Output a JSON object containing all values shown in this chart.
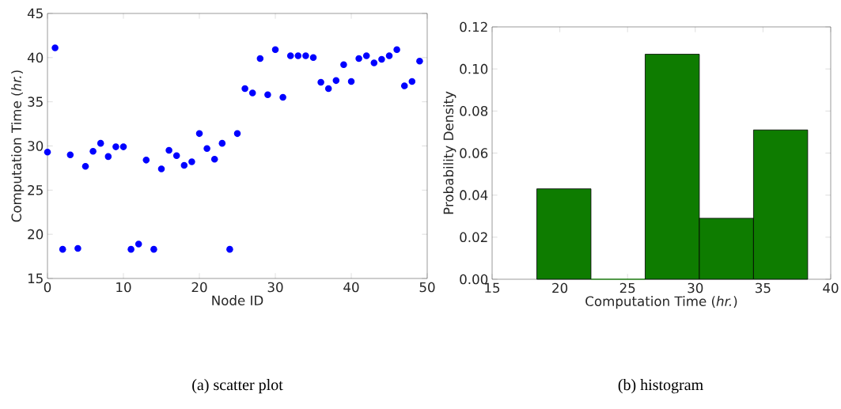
{
  "chart_data": [
    {
      "type": "scatter",
      "xlabel": "Node ID",
      "ylabel": "Computation Time (*hr.*)",
      "color": "#0000ff",
      "marker": "circle",
      "xlim": [
        0,
        50
      ],
      "ylim": [
        15,
        45
      ],
      "xticks": [
        0,
        10,
        20,
        30,
        40,
        50
      ],
      "yticks": [
        15,
        20,
        25,
        30,
        35,
        40,
        45
      ],
      "x": [
        0,
        1,
        2,
        3,
        4,
        5,
        6,
        7,
        8,
        9,
        10,
        11,
        12,
        13,
        14,
        15,
        16,
        17,
        18,
        19,
        20,
        21,
        22,
        23,
        24,
        25,
        26,
        27,
        28,
        29,
        30,
        31,
        32,
        33,
        34,
        35,
        36,
        37,
        38,
        39,
        40,
        41,
        42,
        43,
        44,
        45,
        46,
        47,
        48,
        49
      ],
      "values": [
        29.3,
        41.1,
        18.3,
        29.0,
        18.4,
        27.7,
        29.4,
        30.3,
        28.8,
        29.9,
        29.9,
        18.3,
        18.9,
        28.4,
        18.3,
        27.4,
        29.5,
        28.9,
        27.8,
        28.2,
        31.4,
        29.7,
        28.5,
        30.3,
        18.3,
        31.4,
        36.5,
        36.0,
        39.9,
        35.8,
        40.9,
        35.5,
        40.2,
        40.2,
        40.2,
        40.0,
        37.2,
        36.5,
        37.4,
        39.2,
        37.3,
        39.9,
        40.2,
        39.4,
        39.8,
        40.2,
        40.9,
        36.8,
        37.3,
        39.6
      ],
      "annotations": [
        "(a)  scatter plot"
      ]
    },
    {
      "type": "histogram",
      "xlabel": "Computation Time (*hr.*)",
      "ylabel": "Probability Density",
      "color": "#0e7c00",
      "xlim": [
        15,
        40
      ],
      "ylim": [
        0,
        0.12
      ],
      "xticks": [
        15,
        20,
        25,
        30,
        35,
        40
      ],
      "yticks": [
        {
          "value": 0,
          "label": "0.00"
        },
        {
          "value": 0.02,
          "label": "0.02"
        },
        {
          "value": 0.04,
          "label": "0.04"
        },
        {
          "value": 0.06,
          "label": "0.06"
        },
        {
          "value": 0.08,
          "label": "0.08"
        },
        {
          "value": 0.1,
          "label": "0.10"
        },
        {
          "value": 0.12,
          "label": "0.12"
        }
      ],
      "bins": [
        18.3,
        22.3,
        26.3,
        30.3,
        34.3,
        38.3
      ],
      "values": [
        0.043,
        0,
        0.107,
        0.029,
        0.071
      ],
      "annotations": [
        "(b) histogram"
      ]
    }
  ]
}
